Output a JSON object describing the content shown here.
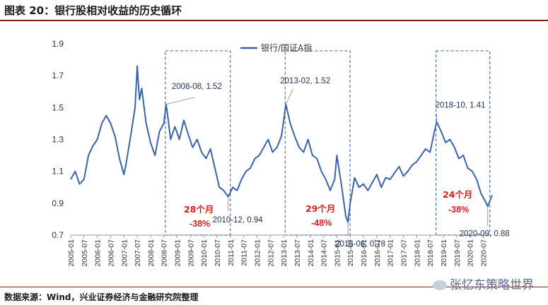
{
  "header": {
    "title": "图表 20：银行股相对收益的历史循环"
  },
  "footer": {
    "source": "数据来源：Wind，兴业证券经济与金融研究院整理",
    "watermark": "张忆东策略世界"
  },
  "chart_data": {
    "type": "line",
    "title": "图表 20：银行股相对收益的历史循环",
    "series": [
      {
        "name": "银行/国证A指",
        "color": "#3b62b0",
        "points": [
          [
            "2005-01",
            1.05
          ],
          [
            "2005-03",
            1.1
          ],
          [
            "2005-05",
            1.02
          ],
          [
            "2005-07",
            1.05
          ],
          [
            "2005-09",
            1.2
          ],
          [
            "2005-11",
            1.26
          ],
          [
            "2006-01",
            1.3
          ],
          [
            "2006-03",
            1.4
          ],
          [
            "2006-05",
            1.45
          ],
          [
            "2006-07",
            1.4
          ],
          [
            "2006-09",
            1.32
          ],
          [
            "2006-11",
            1.18
          ],
          [
            "2007-01",
            1.08
          ],
          [
            "2007-02",
            1.15
          ],
          [
            "2007-04",
            1.32
          ],
          [
            "2007-06",
            1.5
          ],
          [
            "2007-07",
            1.76
          ],
          [
            "2007-08",
            1.55
          ],
          [
            "2007-09",
            1.62
          ],
          [
            "2007-11",
            1.4
          ],
          [
            "2008-01",
            1.28
          ],
          [
            "2008-03",
            1.2
          ],
          [
            "2008-05",
            1.35
          ],
          [
            "2008-07",
            1.4
          ],
          [
            "2008-08",
            1.52
          ],
          [
            "2008-09",
            1.42
          ],
          [
            "2008-10",
            1.3
          ],
          [
            "2008-12",
            1.38
          ],
          [
            "2009-02",
            1.3
          ],
          [
            "2009-04",
            1.42
          ],
          [
            "2009-06",
            1.33
          ],
          [
            "2009-08",
            1.25
          ],
          [
            "2009-10",
            1.3
          ],
          [
            "2009-12",
            1.22
          ],
          [
            "2010-02",
            1.18
          ],
          [
            "2010-04",
            1.24
          ],
          [
            "2010-06",
            1.12
          ],
          [
            "2010-08",
            1.0
          ],
          [
            "2010-10",
            0.98
          ],
          [
            "2010-12",
            0.94
          ],
          [
            "2011-02",
            1.0
          ],
          [
            "2011-04",
            0.98
          ],
          [
            "2011-06",
            1.05
          ],
          [
            "2011-08",
            1.1
          ],
          [
            "2011-10",
            1.12
          ],
          [
            "2011-12",
            1.18
          ],
          [
            "2012-02",
            1.2
          ],
          [
            "2012-04",
            1.25
          ],
          [
            "2012-06",
            1.3
          ],
          [
            "2012-08",
            1.22
          ],
          [
            "2012-10",
            1.25
          ],
          [
            "2012-12",
            1.32
          ],
          [
            "2013-02",
            1.52
          ],
          [
            "2013-04",
            1.4
          ],
          [
            "2013-06",
            1.32
          ],
          [
            "2013-08",
            1.25
          ],
          [
            "2013-10",
            1.22
          ],
          [
            "2013-12",
            1.3
          ],
          [
            "2014-02",
            1.2
          ],
          [
            "2014-04",
            1.18
          ],
          [
            "2014-06",
            1.1
          ],
          [
            "2014-08",
            1.05
          ],
          [
            "2014-10",
            0.98
          ],
          [
            "2014-12",
            1.05
          ],
          [
            "2015-01",
            1.2
          ],
          [
            "2015-03",
            1.02
          ],
          [
            "2015-05",
            0.82
          ],
          [
            "2015-06",
            0.78
          ],
          [
            "2015-07",
            0.9
          ],
          [
            "2015-09",
            1.06
          ],
          [
            "2015-11",
            1.0
          ],
          [
            "2016-01",
            1.02
          ],
          [
            "2016-03",
            0.98
          ],
          [
            "2016-05",
            1.03
          ],
          [
            "2016-07",
            1.08
          ],
          [
            "2016-09",
            1.0
          ],
          [
            "2016-11",
            1.06
          ],
          [
            "2017-01",
            1.05
          ],
          [
            "2017-03",
            1.09
          ],
          [
            "2017-05",
            1.13
          ],
          [
            "2017-07",
            1.07
          ],
          [
            "2017-09",
            1.1
          ],
          [
            "2017-11",
            1.14
          ],
          [
            "2018-01",
            1.16
          ],
          [
            "2018-03",
            1.2
          ],
          [
            "2018-05",
            1.24
          ],
          [
            "2018-07",
            1.22
          ],
          [
            "2018-09",
            1.35
          ],
          [
            "2018-10",
            1.41
          ],
          [
            "2018-12",
            1.35
          ],
          [
            "2019-02",
            1.28
          ],
          [
            "2019-04",
            1.3
          ],
          [
            "2019-06",
            1.25
          ],
          [
            "2019-08",
            1.18
          ],
          [
            "2019-10",
            1.2
          ],
          [
            "2019-12",
            1.12
          ],
          [
            "2020-02",
            1.1
          ],
          [
            "2020-04",
            1.05
          ],
          [
            "2020-06",
            0.96
          ],
          [
            "2020-08",
            0.91
          ],
          [
            "2020-09",
            0.88
          ],
          [
            "2020-11",
            0.95
          ]
        ]
      }
    ],
    "ylim": [
      0.7,
      1.9
    ],
    "yticks": [
      "0.7",
      "0.9",
      "1.1",
      "1.3",
      "1.5",
      "1.7",
      "1.9"
    ],
    "x_tick_labels": [
      "2005-01",
      "2005-07",
      "2006-01",
      "2006-07",
      "2007-01",
      "2007-07",
      "2008-01",
      "2008-07",
      "2009-01",
      "2009-07",
      "2010-01",
      "2010-07",
      "2011-01",
      "2011-07",
      "2012-01",
      "2012-07",
      "2013-01",
      "2013-07",
      "2014-01",
      "2014-07",
      "2015-01",
      "2015-07",
      "2016-01",
      "2016-07",
      "2017-01",
      "2017-07",
      "2018-01",
      "2018-07",
      "2019-01",
      "2019-07",
      "2020-01",
      "2020-07"
    ],
    "legend": "top-center",
    "annotations": [
      {
        "label": "2008-08, 1.52",
        "date": "2008-08",
        "value": 1.52
      },
      {
        "label": "2010-12, 0.94",
        "date": "2010-12",
        "value": 0.94
      },
      {
        "label": "2013-02, 1.52",
        "date": "2013-02",
        "value": 1.52
      },
      {
        "label": "2015-06, 0.78",
        "date": "2015-06",
        "value": 0.78
      },
      {
        "label": "2018-10, 1.41",
        "date": "2018-10",
        "value": 1.41
      },
      {
        "label": "2020-09, 0.88",
        "date": "2020-09",
        "value": 0.88
      }
    ],
    "cycles": [
      {
        "start": "2008-08",
        "end": "2010-12",
        "months": "28个月",
        "change": "-38%"
      },
      {
        "start": "2013-02",
        "end": "2015-06",
        "months": "29个月",
        "change": "-48%"
      },
      {
        "start": "2018-10",
        "end": "2020-09",
        "months": "24个月",
        "change": "-38%"
      }
    ]
  }
}
